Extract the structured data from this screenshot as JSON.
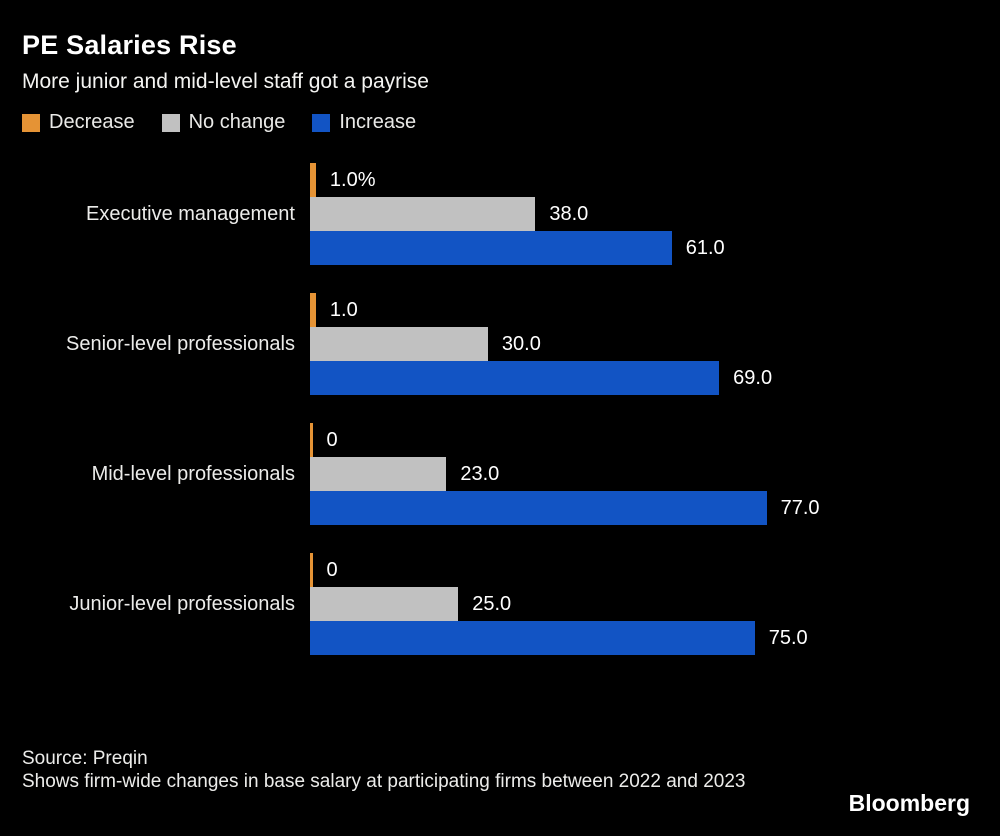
{
  "header": {
    "title": "PE Salaries Rise",
    "subtitle": "More junior and mid-level staff got a payrise"
  },
  "legend": {
    "items": [
      {
        "label": "Decrease",
        "color": "#E59335"
      },
      {
        "label": "No change",
        "color": "#C1C1C1"
      },
      {
        "label": "Increase",
        "color": "#1254C4"
      }
    ]
  },
  "chart_data": {
    "type": "bar",
    "orientation": "horizontal",
    "title": "PE Salaries Rise",
    "subtitle": "More junior and mid-level staff got a payrise",
    "xlabel": "",
    "ylabel": "",
    "xlim": [
      0,
      100
    ],
    "grid": false,
    "legend_position": "top-left",
    "categories": [
      "Executive management",
      "Senior-level professionals",
      "Mid-level professionals",
      "Junior-level professionals"
    ],
    "series": [
      {
        "name": "Decrease",
        "color": "#E59335",
        "values": [
          1.0,
          1.0,
          0,
          0
        ],
        "labels": [
          "1.0%",
          "1.0",
          "0",
          "0"
        ]
      },
      {
        "name": "No change",
        "color": "#C1C1C1",
        "values": [
          38.0,
          30.0,
          23.0,
          25.0
        ],
        "labels": [
          "38.0",
          "30.0",
          "23.0",
          "25.0"
        ]
      },
      {
        "name": "Increase",
        "color": "#1254C4",
        "values": [
          61.0,
          69.0,
          77.0,
          75.0
        ],
        "labels": [
          "61.0",
          "69.0",
          "77.0",
          "75.0"
        ]
      }
    ]
  },
  "footer": {
    "source": "Source: Preqin",
    "note": "Shows firm-wide changes in base salary at participating firms between 2022 and 2023",
    "logo": "Bloomberg"
  }
}
